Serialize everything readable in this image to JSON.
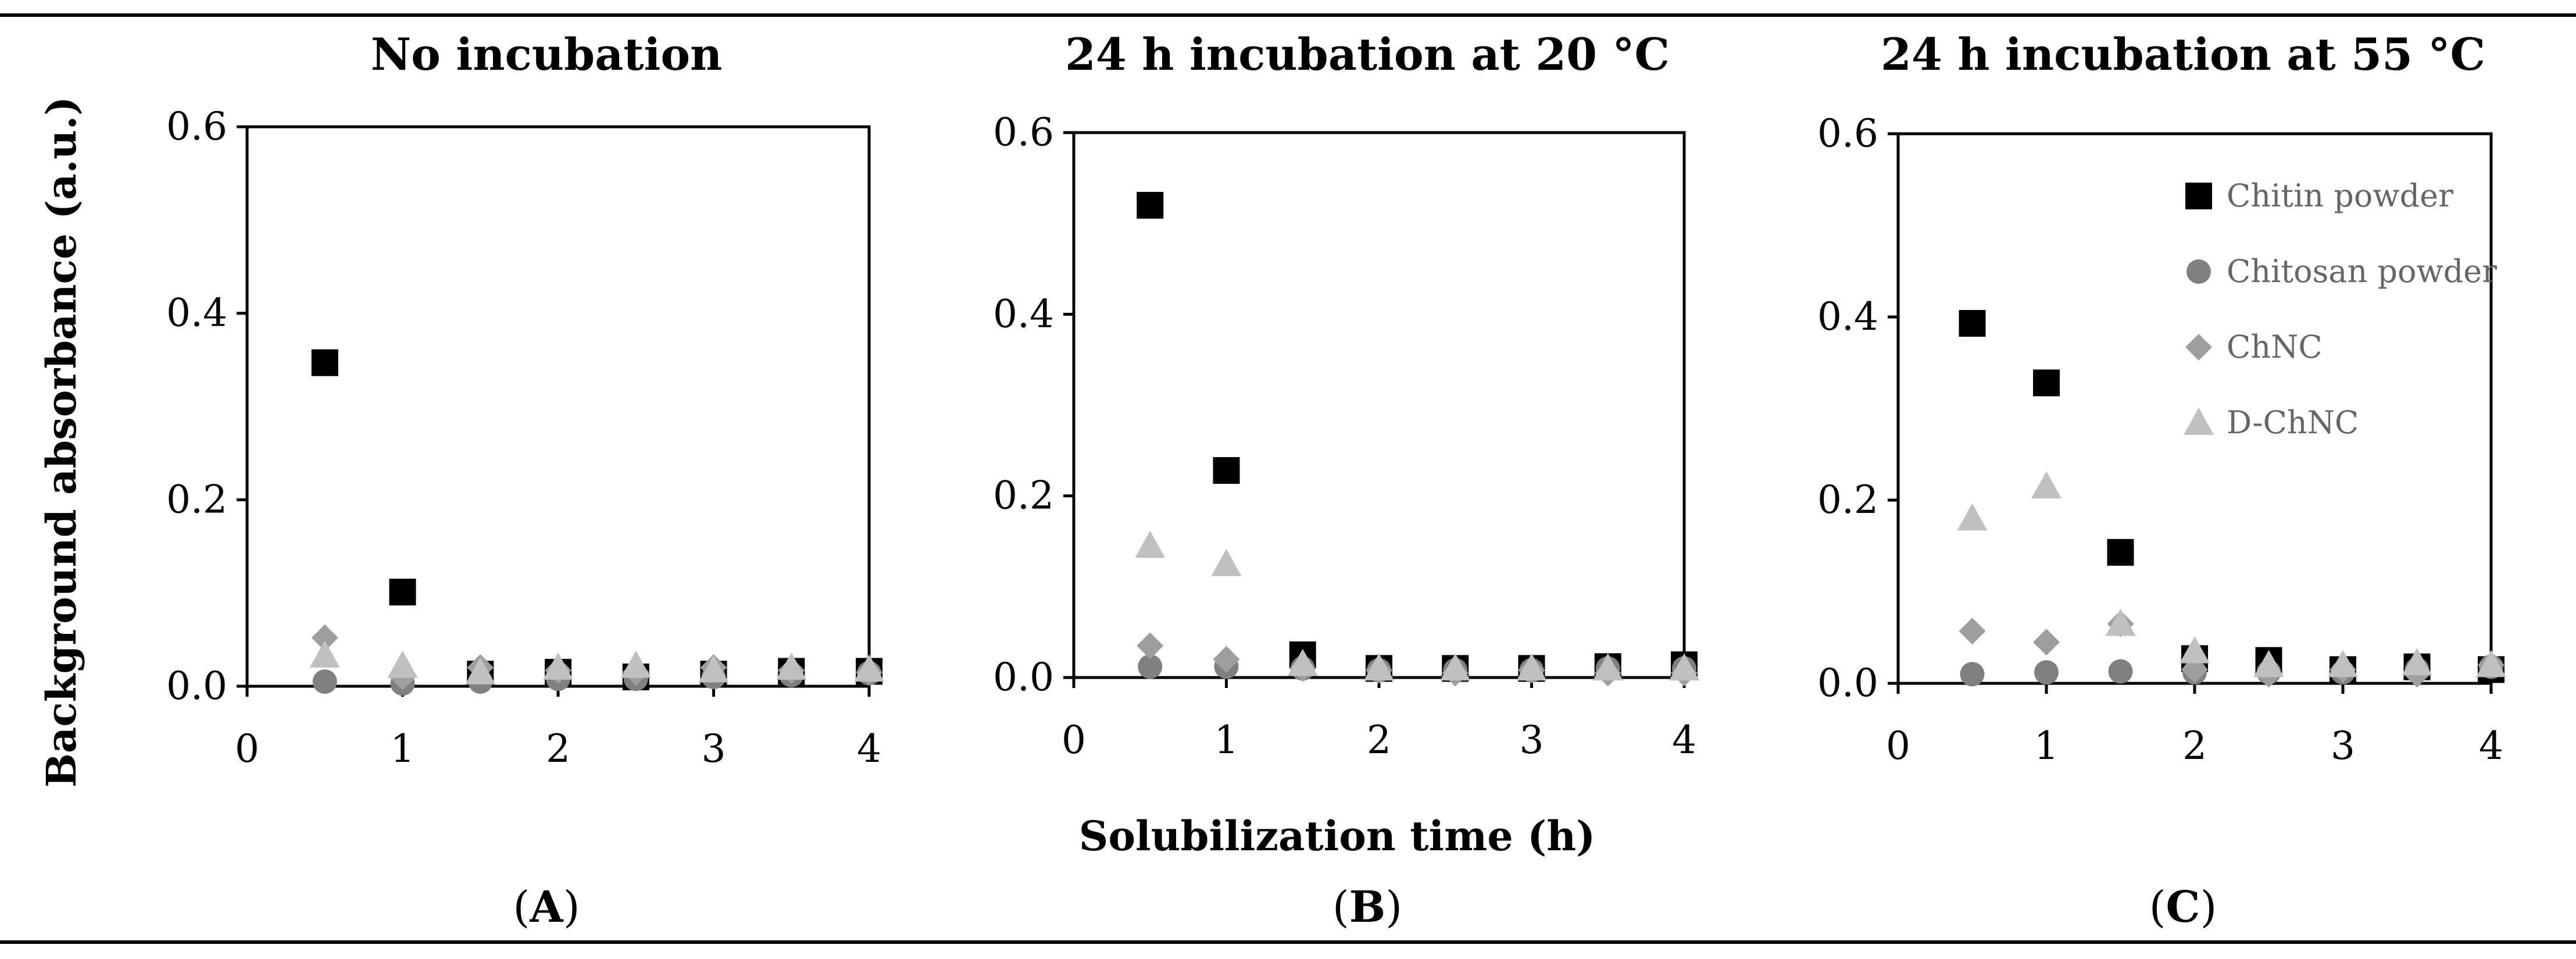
{
  "figure": {
    "y_axis_label": "Background absorbance (a.u.)",
    "x_axis_label": "Solubilization time (h)"
  },
  "series_styles": [
    {
      "name": "Chitin powder",
      "marker": "square",
      "color": "#000000"
    },
    {
      "name": "Chitosan powder",
      "marker": "circle",
      "color": "#808080"
    },
    {
      "name": "ChNC",
      "marker": "diamond",
      "color": "#9e9e9e"
    },
    {
      "name": "D-ChNC",
      "marker": "triangle",
      "color": "#c0c0c0"
    }
  ],
  "legend": {
    "entries": [
      "Chitin powder",
      "Chitosan powder",
      "ChNC",
      "D-ChNC"
    ],
    "panel": "C",
    "placement": "top-right"
  },
  "chart_data": [
    {
      "type": "scatter",
      "panel_label": "A",
      "title": "No incubation",
      "xlabel": "Solubilization time (h)",
      "ylabel": "Background absorbance (a.u.)",
      "xlim": [
        0,
        4
      ],
      "ylim": [
        0,
        0.6
      ],
      "x_ticks": [
        "0",
        "1",
        "2",
        "3",
        "4"
      ],
      "y_ticks": [
        "0.0",
        "0.2",
        "0.4",
        "0.6"
      ],
      "x": [
        0.5,
        1,
        1.5,
        2,
        2.5,
        3,
        3.5,
        4
      ],
      "series": [
        {
          "name": "Chitin powder",
          "values": [
            0.347,
            0.101,
            0.013,
            0.015,
            0.01,
            0.013,
            0.016,
            0.016
          ]
        },
        {
          "name": "Chitosan powder",
          "values": [
            0.005,
            0.003,
            0.005,
            0.008,
            0.008,
            0.01,
            0.012,
            0.014
          ]
        },
        {
          "name": "ChNC",
          "values": [
            0.052,
            0.01,
            0.02,
            0.017,
            0.015,
            0.02,
            0.017,
            0.015
          ]
        },
        {
          "name": "D-ChNC",
          "values": [
            0.033,
            0.022,
            0.015,
            0.02,
            0.022,
            0.017,
            0.02,
            0.018
          ]
        }
      ]
    },
    {
      "type": "scatter",
      "panel_label": "B",
      "title": "24 h incubation at 20 °C",
      "xlabel": "Solubilization time (h)",
      "ylabel": "Background absorbance (a.u.)",
      "xlim": [
        0,
        4
      ],
      "ylim": [
        0,
        0.6
      ],
      "x_ticks": [
        "0",
        "1",
        "2",
        "3",
        "4"
      ],
      "y_ticks": [
        "0.0",
        "0.2",
        "0.4",
        "0.6"
      ],
      "x": [
        0.5,
        1,
        1.5,
        2,
        2.5,
        3,
        3.5,
        4
      ],
      "series": [
        {
          "name": "Chitin powder",
          "values": [
            0.52,
            0.228,
            0.025,
            0.01,
            0.01,
            0.01,
            0.012,
            0.014
          ]
        },
        {
          "name": "Chitosan powder",
          "values": [
            0.012,
            0.012,
            0.01,
            0.008,
            0.008,
            0.008,
            0.01,
            0.01
          ]
        },
        {
          "name": "ChNC",
          "values": [
            0.035,
            0.02,
            0.01,
            0.008,
            0.005,
            0.008,
            0.005,
            0.005
          ]
        },
        {
          "name": "D-ChNC",
          "values": [
            0.145,
            0.125,
            0.015,
            0.01,
            0.01,
            0.01,
            0.01,
            0.01
          ]
        }
      ]
    },
    {
      "type": "scatter",
      "panel_label": "C",
      "title": "24 h incubation at 55 °C",
      "xlabel": "Solubilization time (h)",
      "ylabel": "Background absorbance (a.u.)",
      "xlim": [
        0,
        4
      ],
      "ylim": [
        0,
        0.6
      ],
      "x_ticks": [
        "0",
        "1",
        "2",
        "3",
        "4"
      ],
      "y_ticks": [
        "0.0",
        "0.2",
        "0.4",
        "0.6"
      ],
      "x": [
        0.5,
        1,
        1.5,
        2,
        2.5,
        3,
        3.5,
        4
      ],
      "series": [
        {
          "name": "Chitin powder",
          "values": [
            0.393,
            0.328,
            0.143,
            0.027,
            0.025,
            0.015,
            0.018,
            0.015
          ]
        },
        {
          "name": "Chitosan powder",
          "values": [
            0.01,
            0.012,
            0.013,
            0.012,
            0.012,
            0.012,
            0.015,
            0.018
          ]
        },
        {
          "name": "ChNC",
          "values": [
            0.057,
            0.045,
            0.065,
            0.015,
            0.01,
            0.015,
            0.01,
            0.02
          ]
        },
        {
          "name": "D-ChNC",
          "values": [
            0.18,
            0.215,
            0.065,
            0.035,
            0.02,
            0.02,
            0.022,
            0.02
          ]
        }
      ]
    }
  ]
}
